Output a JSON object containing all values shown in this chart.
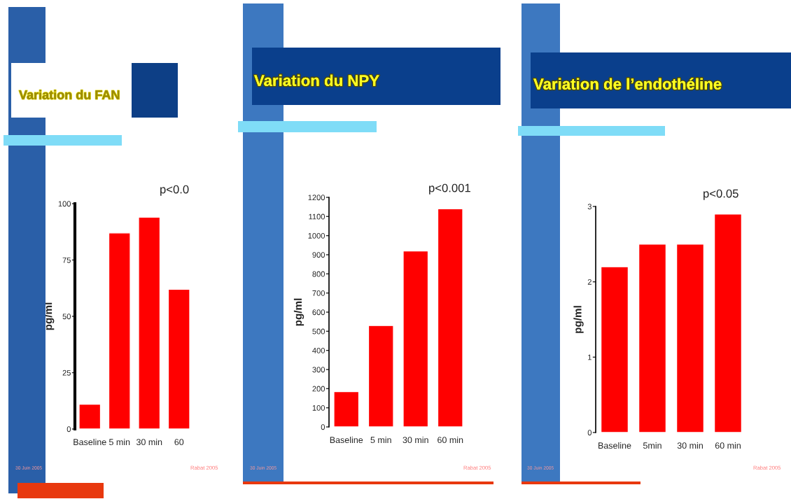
{
  "chart_data": [
    {
      "type": "bar",
      "title": "Variation du FAN",
      "ylabel": "pg/ml",
      "categories": [
        "Baseline",
        "5 min",
        "30 min",
        "60"
      ],
      "values": [
        11,
        87,
        94,
        62
      ],
      "color": "#ff0000",
      "ylim": [
        0,
        100
      ],
      "yticks": [
        0,
        25,
        50,
        75,
        100
      ],
      "annotations": [
        "p<0.0",
        "30 Juin 2005",
        "Rabat 2005"
      ]
    },
    {
      "type": "bar",
      "title": "Variation du NPY",
      "ylabel": "pg/ml",
      "categories": [
        "Baseline",
        "5 min",
        "30 min",
        "60 min"
      ],
      "values": [
        185,
        530,
        920,
        1140
      ],
      "color": "#ff0000",
      "ylim": [
        0,
        1200
      ],
      "yticks": [
        0,
        100,
        200,
        300,
        400,
        500,
        600,
        700,
        800,
        900,
        1000,
        1100,
        1200
      ],
      "annotations": [
        "p<0.001",
        "30 Juin 2005",
        "Rabat 2005"
      ]
    },
    {
      "type": "bar",
      "title": "Variation de l’endothéline",
      "ylabel": "pg/ml",
      "categories": [
        "Baseline",
        "5min",
        "30 min",
        "60 min"
      ],
      "values": [
        2.2,
        2.5,
        2.5,
        2.9
      ],
      "color": "#ff0000",
      "ylim": [
        0,
        3
      ],
      "yticks": [
        0,
        1,
        2,
        3
      ],
      "annotations": [
        "p<0.05",
        "30 Juin 2005",
        "Rabat 2005"
      ]
    }
  ]
}
